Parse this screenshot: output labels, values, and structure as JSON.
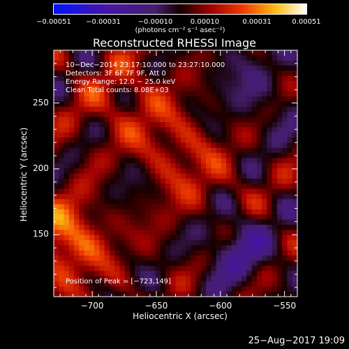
{
  "chart_data": {
    "type": "heatmap",
    "title": "Reconstructed RHESSI Image",
    "xlabel": "Heliocentric X (arcsec)",
    "ylabel": "Heliocentric Y (arcsec)",
    "xlim": [
      -730,
      -540
    ],
    "ylim": [
      103,
      290
    ],
    "x_ticks": [
      -700,
      -650,
      -600,
      -550
    ],
    "x_tick_labels": [
      "−700",
      "−650",
      "−600",
      "−550"
    ],
    "y_ticks": [
      150,
      200,
      250
    ],
    "y_tick_labels": [
      "150",
      "200",
      "250"
    ],
    "colorbar": {
      "range": [
        -0.00051,
        0.00051
      ],
      "ticks": [
        -0.00051,
        -0.00031,
        -0.0001,
        0.0001,
        0.00031,
        0.00051
      ],
      "tick_labels": [
        "−0.00051",
        "−0.00031",
        "−0.00010",
        "0.00010",
        "0.00031",
        "0.00051"
      ],
      "units": "(photons cm⁻² s⁻¹ asec⁻²)"
    },
    "annotations": [
      "10−Dec−2014 23:17:10.000 to 23:27:10.000",
      "Detectors: 3F 6F 7F 9F, Att 0",
      "Energy Range: 12.0 − 25.0 keV",
      "Clean     Total counts: 8.08E+03"
    ],
    "peak_label": "Position of Peak = [−723,149]",
    "peak_position": [
      -723,
      149
    ],
    "grid": false,
    "legend": "colorbar-top"
  },
  "footer": {
    "timestamp": "25−Aug−2017 19:09"
  },
  "colors": {
    "background": "#000000",
    "axes": "#ffffff"
  }
}
